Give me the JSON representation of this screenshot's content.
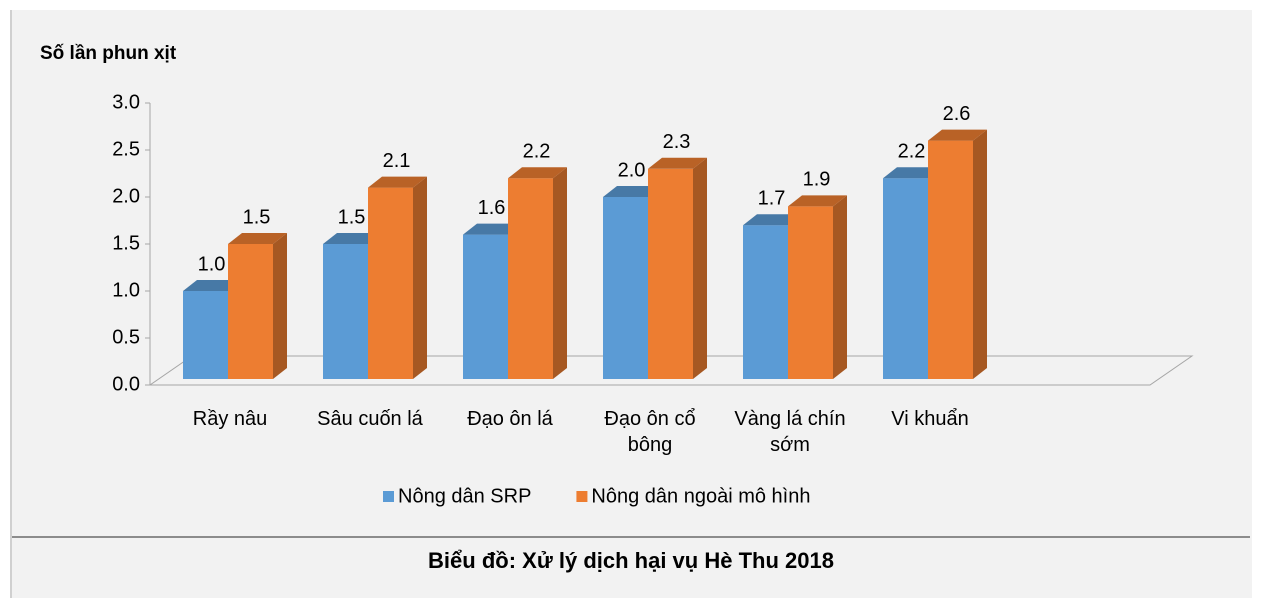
{
  "chart_data": {
    "type": "bar3d",
    "ylabel": "Số lần phun xịt",
    "caption": "Biểu đồ: Xử lý dịch hại vụ Hè Thu 2018",
    "categories": [
      "Rầy nâu",
      "Sâu cuốn lá",
      "Đạo ôn lá",
      "Đạo ôn cổ bông",
      "Vàng lá chín sớm",
      "Vi khuẩn"
    ],
    "series": [
      {
        "name": "Nông dân SRP",
        "color": "#5b9bd5",
        "values": [
          1.0,
          1.5,
          1.6,
          2.0,
          1.7,
          2.2
        ],
        "value_labels": [
          "1.0",
          "1.5",
          "1.6",
          "2.0",
          "1.7",
          "2.2"
        ]
      },
      {
        "name": "Nông dân ngoài mô hình",
        "color": "#ed7d31",
        "values": [
          1.5,
          2.1,
          2.2,
          2.3,
          1.9,
          2.6
        ],
        "value_labels": [
          "1.5",
          "2.1",
          "2.2",
          "2.3",
          "1.9",
          "2.6"
        ]
      }
    ],
    "ylim": [
      0,
      3
    ],
    "yticks": [
      {
        "value": 0,
        "label": "0.0"
      },
      0.5,
      {
        "value": 1,
        "label": "1.0"
      },
      1.5,
      {
        "value": 2,
        "label": "2.0"
      },
      2.5,
      {
        "value": 3,
        "label": "3.0"
      }
    ]
  }
}
